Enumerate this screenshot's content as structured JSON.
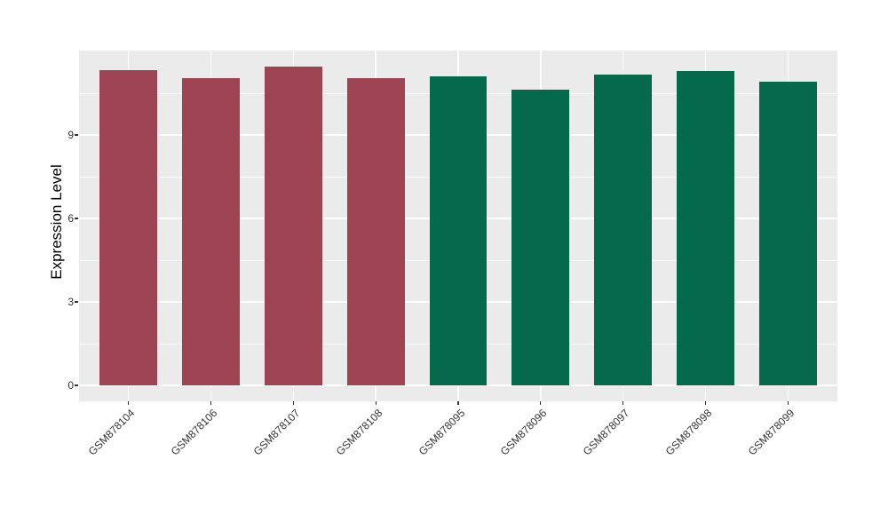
{
  "figure": {
    "background": "#FFFFFF",
    "panel_background": "#EBEBEB",
    "grid_color": "#FFFFFF",
    "tick_mark_color": "#333333",
    "tick_label_color": "#333333",
    "axis_title_color": "#000000"
  },
  "chart_data": {
    "type": "bar",
    "title": "",
    "xlabel": "",
    "ylabel": "Expression Level",
    "categories": [
      "GSM878104",
      "GSM878106",
      "GSM878107",
      "GSM878108",
      "GSM878095",
      "GSM878096",
      "GSM878097",
      "GSM878098",
      "GSM878099"
    ],
    "values": [
      11.32,
      11.04,
      11.47,
      11.03,
      11.11,
      10.63,
      11.17,
      11.31,
      10.9
    ],
    "bar_colors": [
      "#9E4352",
      "#9E4352",
      "#9E4352",
      "#9E4352",
      "#046A4B",
      "#046A4B",
      "#046A4B",
      "#046A4B",
      "#046A4B"
    ],
    "yticks": [
      0,
      3,
      6,
      9
    ],
    "ytick_labels": [
      "0",
      "3",
      "6",
      "9"
    ],
    "minor_yticks": [
      1.5,
      4.5,
      7.5,
      10.5
    ],
    "y_domain": [
      -0.57,
      12.03
    ],
    "ylim": [
      0,
      12
    ],
    "grid": true,
    "legend_position": "none",
    "bar_width_fraction": 0.7,
    "x_label_rotation": -45
  }
}
